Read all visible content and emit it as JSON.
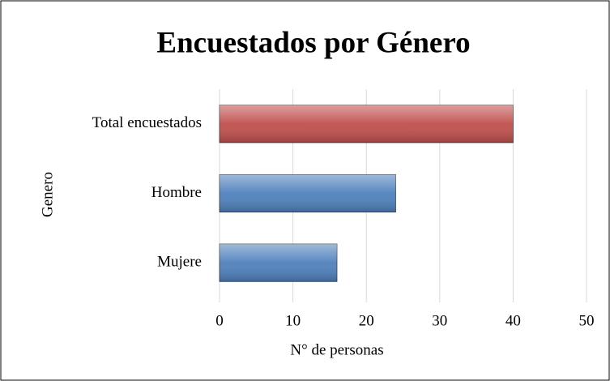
{
  "chart_data": {
    "type": "barh",
    "title": "Encuestados por Género",
    "categories": [
      "Total encuestados",
      "Hombre",
      "Mujere"
    ],
    "values": [
      40,
      24,
      16
    ],
    "colors": [
      "#c0504d",
      "#4f81bd",
      "#4f81bd"
    ],
    "xlim": [
      0,
      50
    ],
    "xticks": [
      0,
      10,
      20,
      30,
      40,
      50
    ],
    "xlabel": "N° de personas",
    "ylabel": "Genero",
    "grid": true
  }
}
